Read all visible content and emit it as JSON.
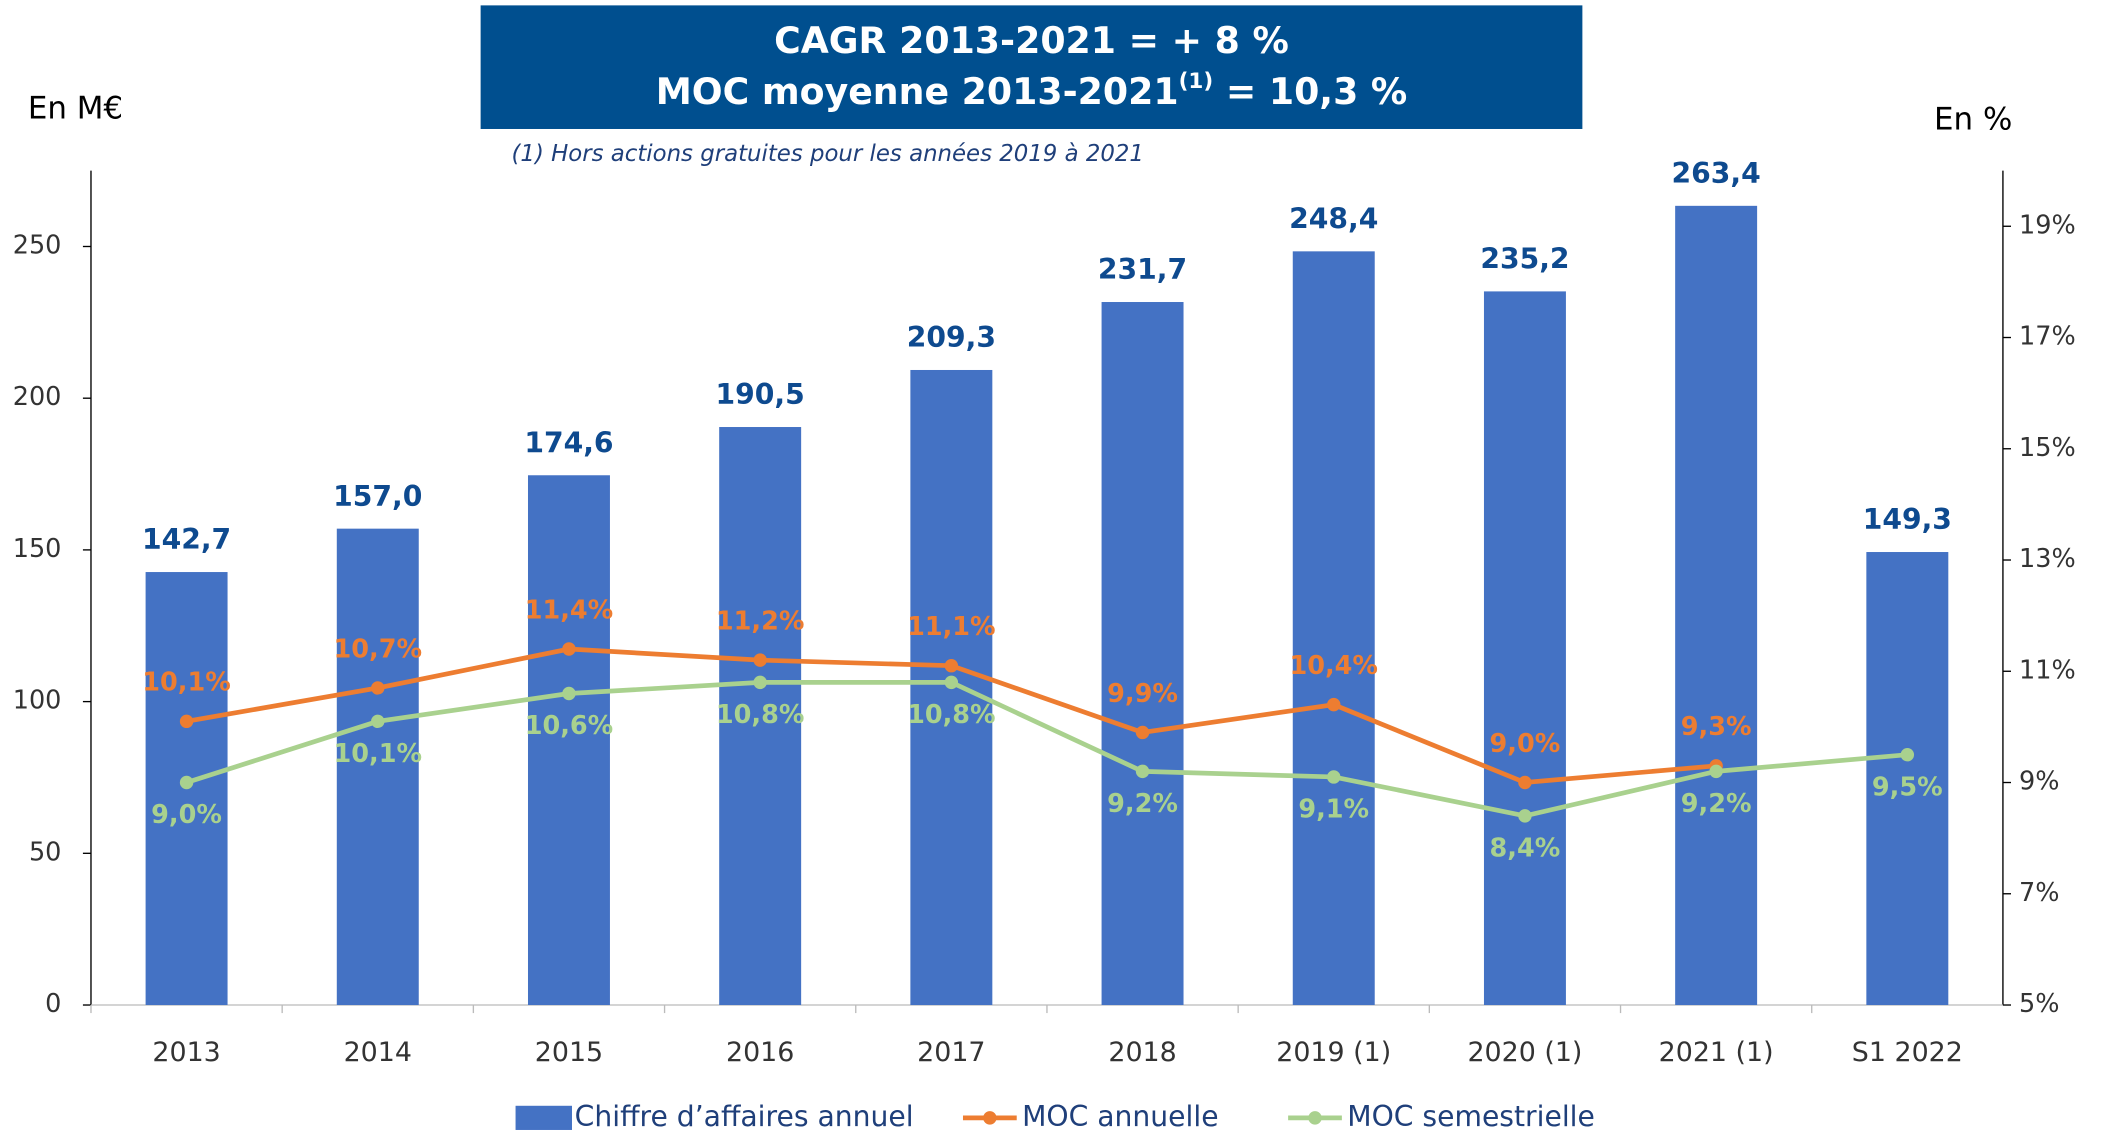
{
  "chart_data": {
    "type": "bar",
    "title": "CAGR 2013-2021 = + 8 %",
    "subtitle": {
      "text": "MOC moyenne 2013-2021",
      "sup": "(1)",
      "rest": " = 10,3 %"
    },
    "footnote": "(1) Hors actions gratuites pour les années 2019 à 2021",
    "y_label": "En M€",
    "y2_label": "En %",
    "categories": [
      "2013",
      "2014",
      "2015",
      "2016",
      "2017",
      "2018",
      "2019 (1)",
      "2020 (1)",
      "2021 (1)",
      "S1 2022"
    ],
    "series": [
      {
        "name": "Chiffre d’affaires annuel",
        "color": "#4472c4",
        "type": "bar",
        "values": [
          142.7,
          157.0,
          174.6,
          190.5,
          209.3,
          231.7,
          248.4,
          235.2,
          263.4,
          149.3
        ],
        "value_labels": [
          "142,7",
          "157,0",
          "174,6",
          "190,5",
          "209,3",
          "231,7",
          "248,4",
          "235,2",
          "263,4",
          "149,3"
        ]
      },
      {
        "name": "MOC annuelle",
        "color": "#ed7d31",
        "type": "line",
        "axis": "y2",
        "values": [
          10.1,
          10.7,
          11.4,
          11.2,
          11.1,
          9.9,
          10.4,
          9.0,
          9.3,
          null
        ],
        "value_labels": [
          "10,1%",
          "10,7%",
          "11,4%",
          "11,2%",
          "11,1%",
          "9,9%",
          "10,4%",
          "9,0%",
          "9,3%",
          null
        ]
      },
      {
        "name": "MOC semestrielle",
        "color": "#a9d18e",
        "type": "line",
        "axis": "y2",
        "values": [
          9.0,
          10.1,
          10.6,
          10.8,
          10.8,
          9.2,
          9.1,
          8.4,
          9.2,
          9.5
        ],
        "value_labels": [
          "9,0%",
          "10,1%",
          "10,6%",
          "10,8%",
          "10,8%",
          "9,2%",
          "9,1%",
          "8,4%",
          "9,2%",
          "9,5%"
        ]
      }
    ],
    "ylim": [
      0,
      275
    ],
    "yticks": [
      0,
      50,
      100,
      150,
      200,
      250
    ],
    "y2lim": [
      5,
      20
    ],
    "y2ticks": [
      {
        "value": 5,
        "label": "5%"
      },
      {
        "value": 7,
        "label": "7%"
      },
      {
        "value": 9,
        "label": "9%"
      },
      {
        "value": 11,
        "label": "11%"
      },
      {
        "value": 13,
        "label": "13%"
      },
      {
        "value": 15,
        "label": "15%"
      },
      {
        "value": 17,
        "label": "17%"
      },
      {
        "value": 19,
        "label": "19%"
      }
    ]
  }
}
